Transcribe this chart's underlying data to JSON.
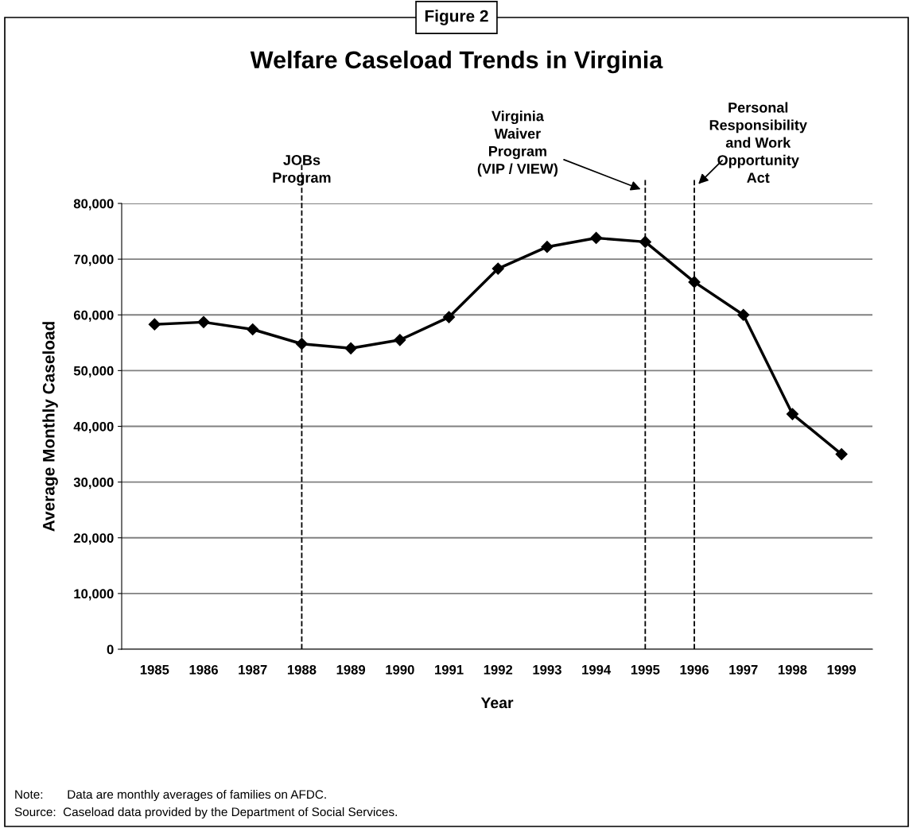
{
  "chart_data": {
    "type": "line",
    "title": "Welfare Caseload Trends in Virginia",
    "subtitle": "Figure 2",
    "xlabel": "Year",
    "ylabel": "Average Monthly Caseload",
    "categories": [
      "1985",
      "1986",
      "1987",
      "1988",
      "1989",
      "1990",
      "1991",
      "1992",
      "1993",
      "1994",
      "1995",
      "1996",
      "1997",
      "1998",
      "1999"
    ],
    "series": [
      {
        "color": "#000000",
        "values": [
          58300,
          58700,
          57400,
          54800,
          54000,
          55500,
          59600,
          68300,
          72200,
          73800,
          73100,
          65900,
          60000,
          42200,
          35000
        ]
      }
    ],
    "ylim": [
      0,
      80000
    ],
    "yticks": [
      {
        "value": 0,
        "label": "0"
      },
      {
        "value": 10000,
        "label": "10,000"
      },
      {
        "value": 20000,
        "label": "20,000"
      },
      {
        "value": 30000,
        "label": "30,000"
      },
      {
        "value": 40000,
        "label": "40,000"
      },
      {
        "value": 50000,
        "label": "50,000"
      },
      {
        "value": 60000,
        "label": "60,000"
      },
      {
        "value": 70000,
        "label": "70,000"
      },
      {
        "value": 80000,
        "label": "80,000"
      }
    ],
    "grid": "y",
    "marker": "diamond",
    "line_style": "solid",
    "legend": false,
    "ref_lines": [
      {
        "axis": "x",
        "value": "1988",
        "label": "JOBs\nProgram",
        "color": "#000000",
        "line_style": "dashed"
      },
      {
        "axis": "x",
        "value": "1995",
        "label": "Virginia\nWaiver\nProgram\n(VIP / VIEW)",
        "color": "#000000",
        "line_style": "dashed"
      },
      {
        "axis": "x",
        "value": "1996",
        "label": "Personal\nResponsibility\nand Work\nOpportunity\nAct",
        "color": "#000000",
        "line_style": "dashed"
      }
    ],
    "annotations": [
      "Note:       Data are monthly averages of families on AFDC.",
      "Source:  Caseload data provided by the Department of Social Services."
    ]
  }
}
